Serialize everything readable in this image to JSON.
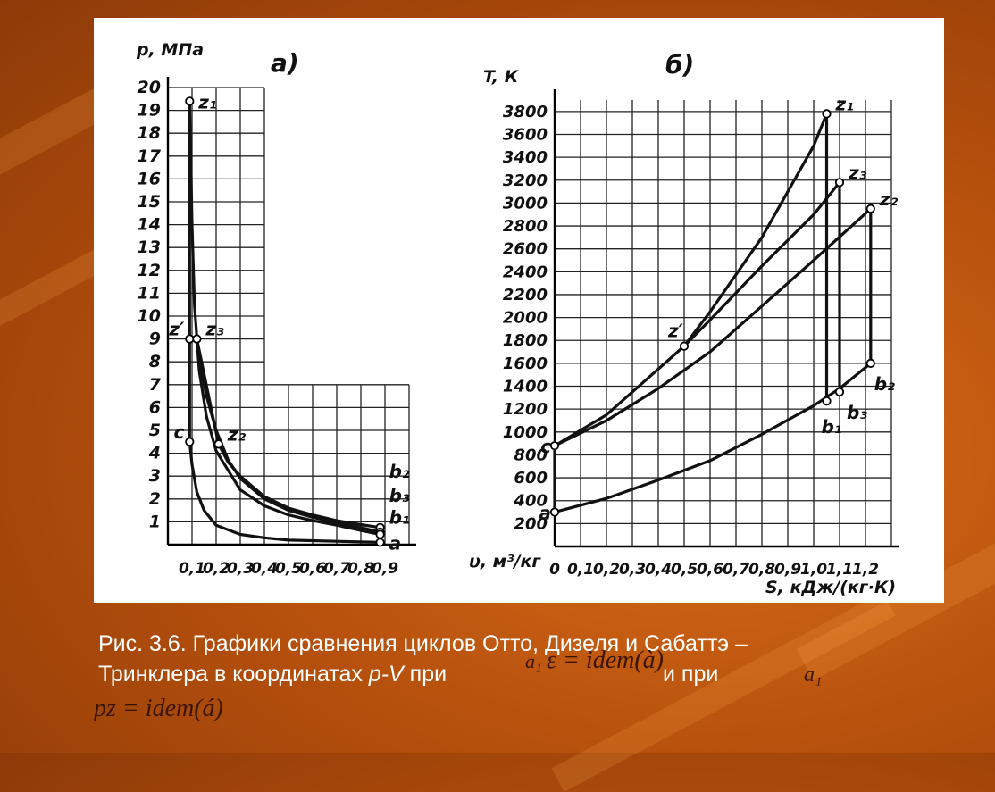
{
  "caption": {
    "line1": "Рис. 3.6. Графики сравнения циклов Отто, Дизеля и Сабаттэ –",
    "line2_a": "Тринклера в координатах ",
    "line2_pv": "p-V",
    "line2_b": "  при",
    "line2_c": "и при",
    "formula_eps": "ε = idem(à)",
    "formula_pz": "pz = idem(á)",
    "formula_a1": "a₁",
    "formula_a_small": "a₁"
  },
  "chart_data": [
    {
      "type": "line",
      "panel_label": "а)",
      "ylabel": "p, МПа",
      "xlabel": "υ, м³/кг",
      "x_ticks": [
        "0,1",
        "0,2",
        "0,3",
        "0,4",
        "0,5",
        "0,6",
        "0,7",
        "0,8",
        "0,9"
      ],
      "y_ticks": [
        "1",
        "2",
        "3",
        "4",
        "5",
        "6",
        "7",
        "8",
        "9",
        "10",
        "11",
        "12",
        "13",
        "14",
        "15",
        "16",
        "17",
        "18",
        "19",
        "20"
      ],
      "xlim": [
        0,
        1.0
      ],
      "ylim": [
        0,
        20
      ],
      "grid": true,
      "points": [
        {
          "label": "z₁",
          "x": 0.09,
          "y": 19.4
        },
        {
          "label": "z′",
          "x": 0.09,
          "y": 9.0
        },
        {
          "label": "z₃",
          "x": 0.12,
          "y": 9.0
        },
        {
          "label": "z₂",
          "x": 0.21,
          "y": 4.4
        },
        {
          "label": "c",
          "x": 0.09,
          "y": 4.5
        },
        {
          "label": "b₂",
          "x": 0.88,
          "y": 0.75
        },
        {
          "label": "b₃",
          "x": 0.88,
          "y": 0.55
        },
        {
          "label": "b₁",
          "x": 0.88,
          "y": 0.45
        },
        {
          "label": "a",
          "x": 0.88,
          "y": 0.1
        }
      ],
      "curves": [
        {
          "name": "c-z₁",
          "x": [
            0.09,
            0.09
          ],
          "y": [
            4.5,
            19.4
          ]
        },
        {
          "name": "z₁-b₁",
          "x": [
            0.09,
            0.1,
            0.11,
            0.13,
            0.16,
            0.2,
            0.3,
            0.4,
            0.5,
            0.6,
            0.7,
            0.8,
            0.88
          ],
          "y": [
            19.4,
            14.0,
            10.5,
            7.6,
            5.6,
            4.1,
            2.4,
            1.7,
            1.3,
            1.05,
            0.85,
            0.62,
            0.45
          ]
        },
        {
          "name": "z₃-b₃",
          "x": [
            0.12,
            0.14,
            0.16,
            0.2,
            0.25,
            0.3,
            0.4,
            0.5,
            0.6,
            0.7,
            0.8,
            0.88
          ],
          "y": [
            9.0,
            7.6,
            6.5,
            5.0,
            3.7,
            2.9,
            2.0,
            1.5,
            1.2,
            0.95,
            0.75,
            0.55
          ]
        },
        {
          "name": "z₂-b₂",
          "x": [
            0.21,
            0.25,
            0.3,
            0.4,
            0.5,
            0.6,
            0.7,
            0.8,
            0.88
          ],
          "y": [
            4.4,
            3.6,
            3.0,
            2.1,
            1.6,
            1.3,
            1.05,
            0.88,
            0.75
          ]
        },
        {
          "name": "a-c",
          "x": [
            0.88,
            0.7,
            0.5,
            0.4,
            0.3,
            0.2,
            0.15,
            0.12,
            0.1,
            0.09
          ],
          "y": [
            0.1,
            0.15,
            0.2,
            0.3,
            0.45,
            0.85,
            1.5,
            2.3,
            3.5,
            4.5
          ]
        },
        {
          "name": "z′-z₃",
          "x": [
            0.09,
            0.12
          ],
          "y": [
            9.0,
            9.0
          ]
        },
        {
          "name": "z₃-z₂",
          "x": [
            0.12,
            0.21
          ],
          "y": [
            9.0,
            4.4
          ]
        },
        {
          "name": "a-b",
          "x": [
            0.88,
            0.88
          ],
          "y": [
            0.1,
            0.75
          ]
        }
      ]
    },
    {
      "type": "line",
      "panel_label": "б)",
      "ylabel": "T, К",
      "xlabel": "S, кДж/(кг·К)",
      "x_ticks": [
        "0",
        "0,1",
        "0,2",
        "0,3",
        "0,4",
        "0,5",
        "0,6",
        "0,7",
        "0,8",
        "0,9",
        "1,0",
        "1,1",
        "1,2"
      ],
      "y_ticks": [
        "200",
        "400",
        "600",
        "800",
        "1000",
        "1200",
        "1400",
        "1600",
        "1800",
        "2000",
        "2200",
        "2400",
        "2600",
        "2800",
        "3000",
        "3200",
        "3400",
        "3600",
        "3800"
      ],
      "xlim": [
        0,
        1.3
      ],
      "ylim": [
        0,
        3900
      ],
      "grid": true,
      "points": [
        {
          "label": "z₁",
          "x": 1.05,
          "y": 3780
        },
        {
          "label": "z₃",
          "x": 1.1,
          "y": 3180
        },
        {
          "label": "z₂",
          "x": 1.22,
          "y": 2950
        },
        {
          "label": "z′",
          "x": 0.5,
          "y": 1750
        },
        {
          "label": "c",
          "x": 0.0,
          "y": 880
        },
        {
          "label": "a",
          "x": 0.0,
          "y": 300
        },
        {
          "label": "b₂",
          "x": 1.22,
          "y": 1600
        },
        {
          "label": "b₃",
          "x": 1.1,
          "y": 1350
        },
        {
          "label": "b₁",
          "x": 1.05,
          "y": 1270
        }
      ],
      "curves": [
        {
          "name": "c-z₁",
          "x": [
            0,
            0.2,
            0.4,
            0.5,
            0.6,
            0.8,
            1.0,
            1.05
          ],
          "y": [
            880,
            1150,
            1550,
            1750,
            2050,
            2700,
            3500,
            3780
          ]
        },
        {
          "name": "z′-z₃",
          "x": [
            0.5,
            0.6,
            0.8,
            1.0,
            1.1
          ],
          "y": [
            1750,
            1980,
            2450,
            2900,
            3180
          ]
        },
        {
          "name": "c-z₂",
          "x": [
            0,
            0.2,
            0.4,
            0.6,
            0.8,
            1.0,
            1.22
          ],
          "y": [
            880,
            1100,
            1380,
            1700,
            2100,
            2500,
            2950
          ]
        },
        {
          "name": "a-b",
          "x": [
            0,
            0.2,
            0.4,
            0.6,
            0.8,
            1.0,
            1.1,
            1.22
          ],
          "y": [
            300,
            420,
            580,
            750,
            980,
            1230,
            1380,
            1600
          ]
        },
        {
          "name": "z₁-b₁",
          "x": [
            1.05,
            1.05
          ],
          "y": [
            3780,
            1270
          ]
        },
        {
          "name": "z₃-b₃",
          "x": [
            1.1,
            1.1
          ],
          "y": [
            3180,
            1350
          ]
        },
        {
          "name": "z₂-b₂",
          "x": [
            1.22,
            1.22
          ],
          "y": [
            2950,
            1600
          ]
        },
        {
          "name": "a-c",
          "x": [
            0,
            0
          ],
          "y": [
            300,
            880
          ]
        }
      ]
    }
  ],
  "colors": {
    "ink": "#111111",
    "caption": "#ffffff",
    "formula": "#3a1404"
  }
}
